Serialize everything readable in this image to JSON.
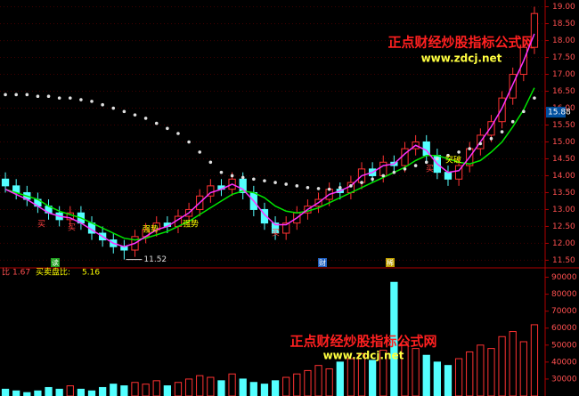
{
  "chart_data": [
    {
      "type": "candlestick",
      "open": [
        13.9,
        13.7,
        13.5,
        13.3,
        13.1,
        12.9,
        12.7,
        12.9,
        12.6,
        12.3,
        12.1,
        11.9,
        11.8,
        12.2,
        12.4,
        12.6,
        12.5,
        12.8,
        13.0,
        13.4,
        13.7,
        13.6,
        13.9,
        13.5,
        13.0,
        12.6,
        12.3,
        12.6,
        12.9,
        13.1,
        13.3,
        13.6,
        13.5,
        13.8,
        14.2,
        14.0,
        14.4,
        14.3,
        14.8,
        15.0,
        14.6,
        14.1,
        13.9,
        14.3,
        14.8,
        15.2,
        15.6,
        16.3,
        17.0,
        17.8
      ],
      "high": [
        14.1,
        13.9,
        13.7,
        13.5,
        13.3,
        13.1,
        13.1,
        13.1,
        12.8,
        12.5,
        12.3,
        12.1,
        12.4,
        12.6,
        12.8,
        12.8,
        13.0,
        13.2,
        13.6,
        13.9,
        13.9,
        14.1,
        14.1,
        13.7,
        13.2,
        12.8,
        12.8,
        13.1,
        13.3,
        13.5,
        13.8,
        13.8,
        14.0,
        14.4,
        14.4,
        14.6,
        14.6,
        15.0,
        15.2,
        15.2,
        14.8,
        14.3,
        14.5,
        15.0,
        15.4,
        15.8,
        16.5,
        17.2,
        18.0,
        19.0
      ],
      "low": [
        13.5,
        13.3,
        13.1,
        12.9,
        12.7,
        12.5,
        12.5,
        12.4,
        12.1,
        11.9,
        11.7,
        11.52,
        11.6,
        12.0,
        12.2,
        12.3,
        12.3,
        12.6,
        12.8,
        13.2,
        13.4,
        13.4,
        13.3,
        12.8,
        12.4,
        12.1,
        12.1,
        12.4,
        12.7,
        12.9,
        13.1,
        13.3,
        13.3,
        13.6,
        13.8,
        13.8,
        14.1,
        14.1,
        14.6,
        14.4,
        13.9,
        13.7,
        13.7,
        14.1,
        14.6,
        15.0,
        15.4,
        16.1,
        16.8,
        17.6
      ],
      "close": [
        13.7,
        13.5,
        13.3,
        13.1,
        12.9,
        12.7,
        12.9,
        12.6,
        12.3,
        12.1,
        11.9,
        11.8,
        12.2,
        12.4,
        12.6,
        12.5,
        12.8,
        13.0,
        13.4,
        13.7,
        13.6,
        13.9,
        13.5,
        13.0,
        12.6,
        12.3,
        12.6,
        12.9,
        13.1,
        13.3,
        13.6,
        13.5,
        13.8,
        14.2,
        14.0,
        14.4,
        14.3,
        14.8,
        15.0,
        14.6,
        14.1,
        13.9,
        14.3,
        14.8,
        15.2,
        15.6,
        16.3,
        17.0,
        17.8,
        18.8
      ],
      "up_color": "#ff3232",
      "down_color": "#54ffff",
      "series": [
        {
          "color": "#00e600",
          "values": [
            13.6,
            13.5,
            13.4,
            13.3,
            13.1,
            12.95,
            12.85,
            12.75,
            12.6,
            12.45,
            12.3,
            12.15,
            12.1,
            12.15,
            12.25,
            12.35,
            12.5,
            12.65,
            12.85,
            13.05,
            13.25,
            13.45,
            13.55,
            13.5,
            13.35,
            13.1,
            12.95,
            12.9,
            12.95,
            13.05,
            13.2,
            13.35,
            13.5,
            13.65,
            13.8,
            13.95,
            14.1,
            14.25,
            14.45,
            14.6,
            14.6,
            14.5,
            14.4,
            14.35,
            14.45,
            14.7,
            15.0,
            15.45,
            15.95,
            16.6
          ]
        },
        {
          "color": "#ff33ff",
          "values": [
            13.6,
            13.45,
            13.3,
            13.1,
            12.9,
            12.8,
            12.75,
            12.6,
            12.4,
            12.2,
            12.0,
            11.9,
            12.0,
            12.2,
            12.4,
            12.5,
            12.7,
            12.9,
            13.2,
            13.5,
            13.6,
            13.75,
            13.6,
            13.25,
            12.85,
            12.55,
            12.55,
            12.75,
            13.0,
            13.2,
            13.45,
            13.55,
            13.7,
            14.0,
            14.1,
            14.3,
            14.35,
            14.65,
            14.9,
            14.75,
            14.35,
            14.1,
            14.15,
            14.55,
            15.0,
            15.45,
            16.0,
            16.7,
            17.4,
            18.2
          ]
        },
        {
          "color": "#e0e0e0",
          "style": "dots",
          "values": [
            16.4,
            16.4,
            16.4,
            16.35,
            16.35,
            16.3,
            16.3,
            16.25,
            16.2,
            16.1,
            16.0,
            15.9,
            15.8,
            15.7,
            15.55,
            15.4,
            15.25,
            15.0,
            14.7,
            14.4,
            14.1,
            14.0,
            13.95,
            13.9,
            13.85,
            13.8,
            13.75,
            13.7,
            13.65,
            13.62,
            13.6,
            13.65,
            13.7,
            13.8,
            13.9,
            14.0,
            14.1,
            14.2,
            14.3,
            14.4,
            14.5,
            14.6,
            14.7,
            14.8,
            14.95,
            15.1,
            15.3,
            15.6,
            15.9,
            16.3
          ]
        }
      ],
      "ylim": [
        11.3,
        19.2
      ],
      "yticks": [
        {
          "value": 11.5,
          "label": "11.50"
        },
        {
          "value": 12,
          "label": "12.00"
        },
        {
          "value": 12.5,
          "label": "12.50"
        },
        {
          "value": 13,
          "label": "13.00"
        },
        {
          "value": 13.5,
          "label": "13.50"
        },
        {
          "value": 14,
          "label": "14.00"
        },
        {
          "value": 14.5,
          "label": "14.50"
        },
        {
          "value": 15,
          "label": "15.00"
        },
        {
          "value": 15.5,
          "label": "15.50"
        },
        {
          "value": 16,
          "label": "16.00"
        },
        {
          "value": 16.5,
          "label": "16.50"
        },
        {
          "value": 17,
          "label": "17.00"
        },
        {
          "value": 17.5,
          "label": "17.50"
        },
        {
          "value": 18,
          "label": "18.00"
        },
        {
          "value": 18.5,
          "label": "18.50"
        },
        {
          "value": 19,
          "label": "19.00"
        }
      ],
      "marker_value": 15.88,
      "grid": true,
      "annotations": [
        "强势",
        "强势",
        "突破",
        "买",
        "买",
        "买",
        "买"
      ],
      "events": [
        "读",
        "财",
        "稀"
      ],
      "watermark": [
        "正点财经炒股指标公式网",
        "www.zdcj.net"
      ]
    },
    {
      "type": "bar",
      "header": [
        "比",
        1.67,
        "买卖盘比:",
        5.16
      ],
      "values": [
        24000,
        23000,
        22000,
        23000,
        25000,
        24000,
        26000,
        24000,
        23000,
        25000,
        27000,
        26000,
        28000,
        27000,
        29000,
        26000,
        28000,
        30000,
        32000,
        31000,
        29000,
        33000,
        30000,
        28000,
        27000,
        29000,
        31000,
        33000,
        35000,
        38000,
        36000,
        40000,
        42000,
        45000,
        41000,
        47000,
        87000,
        52000,
        48000,
        44000,
        40000,
        38000,
        42000,
        46000,
        50000,
        48000,
        55000,
        58000,
        52000,
        62000
      ],
      "ylim": [
        20000,
        95000
      ],
      "yticks": [
        30000,
        40000,
        50000,
        60000,
        70000,
        80000,
        90000
      ],
      "watermark": [
        "正点财经炒股指标公式网",
        "www.zdcj.net"
      ]
    }
  ]
}
